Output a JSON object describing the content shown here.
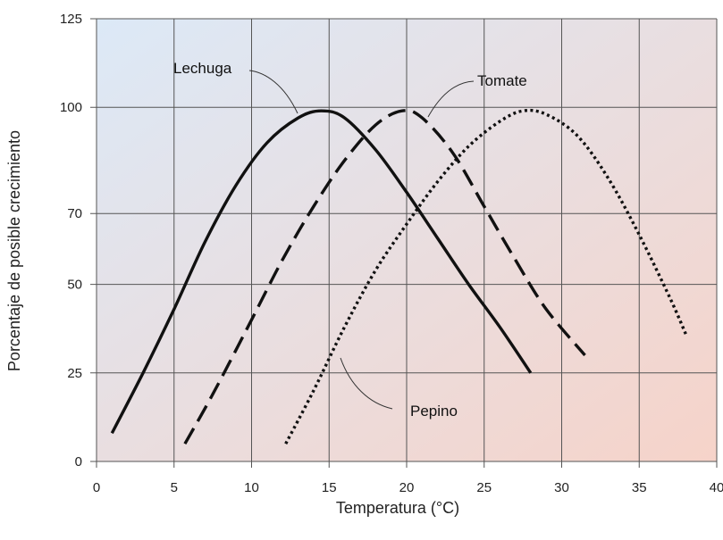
{
  "chart_data": {
    "type": "line",
    "title": "",
    "xlabel": "Temperatura (°C)",
    "ylabel": "Porcentaje de posible crecimiento",
    "xlim": [
      0,
      40
    ],
    "ylim": [
      0,
      125
    ],
    "x_ticks": [
      0,
      5,
      10,
      15,
      20,
      25,
      30,
      35,
      40
    ],
    "y_ticks": [
      0,
      25,
      50,
      70,
      100,
      125
    ],
    "grid": true,
    "background": {
      "gradient_from": "#dce9f7",
      "gradient_to": "#f6d3c9"
    },
    "series": [
      {
        "name": "Lechuga",
        "style": "solid",
        "points": [
          [
            1,
            8
          ],
          [
            3,
            25
          ],
          [
            5,
            43
          ],
          [
            7,
            62
          ],
          [
            9,
            78
          ],
          [
            11,
            90
          ],
          [
            13,
            97
          ],
          [
            14.5,
            99
          ],
          [
            16,
            97
          ],
          [
            18,
            88
          ],
          [
            20,
            76
          ],
          [
            22,
            63
          ],
          [
            24,
            50
          ],
          [
            26,
            38
          ],
          [
            28,
            25
          ]
        ]
      },
      {
        "name": "Tomate",
        "style": "dashed",
        "points": [
          [
            5.7,
            5
          ],
          [
            7.5,
            19
          ],
          [
            10,
            40
          ],
          [
            12,
            57
          ],
          [
            14,
            72
          ],
          [
            16,
            85
          ],
          [
            18,
            95
          ],
          [
            19.7,
            99
          ],
          [
            21,
            97
          ],
          [
            23,
            87
          ],
          [
            25,
            72
          ],
          [
            27,
            57
          ],
          [
            29,
            43
          ],
          [
            31.5,
            30
          ]
        ]
      },
      {
        "name": "Pepino",
        "style": "dotted",
        "points": [
          [
            12.2,
            5
          ],
          [
            14,
            20
          ],
          [
            16,
            38
          ],
          [
            18,
            54
          ],
          [
            20,
            67
          ],
          [
            22,
            79
          ],
          [
            24,
            89
          ],
          [
            26,
            96
          ],
          [
            27.5,
            99
          ],
          [
            29,
            98
          ],
          [
            31,
            92
          ],
          [
            33,
            80
          ],
          [
            35,
            64
          ],
          [
            37,
            46
          ],
          [
            38,
            36
          ]
        ]
      }
    ],
    "annotations": [
      {
        "text": "Lechuga",
        "series": "Lechuga"
      },
      {
        "text": "Tomate",
        "series": "Tomate"
      },
      {
        "text": "Pepino",
        "series": "Pepino"
      }
    ]
  }
}
